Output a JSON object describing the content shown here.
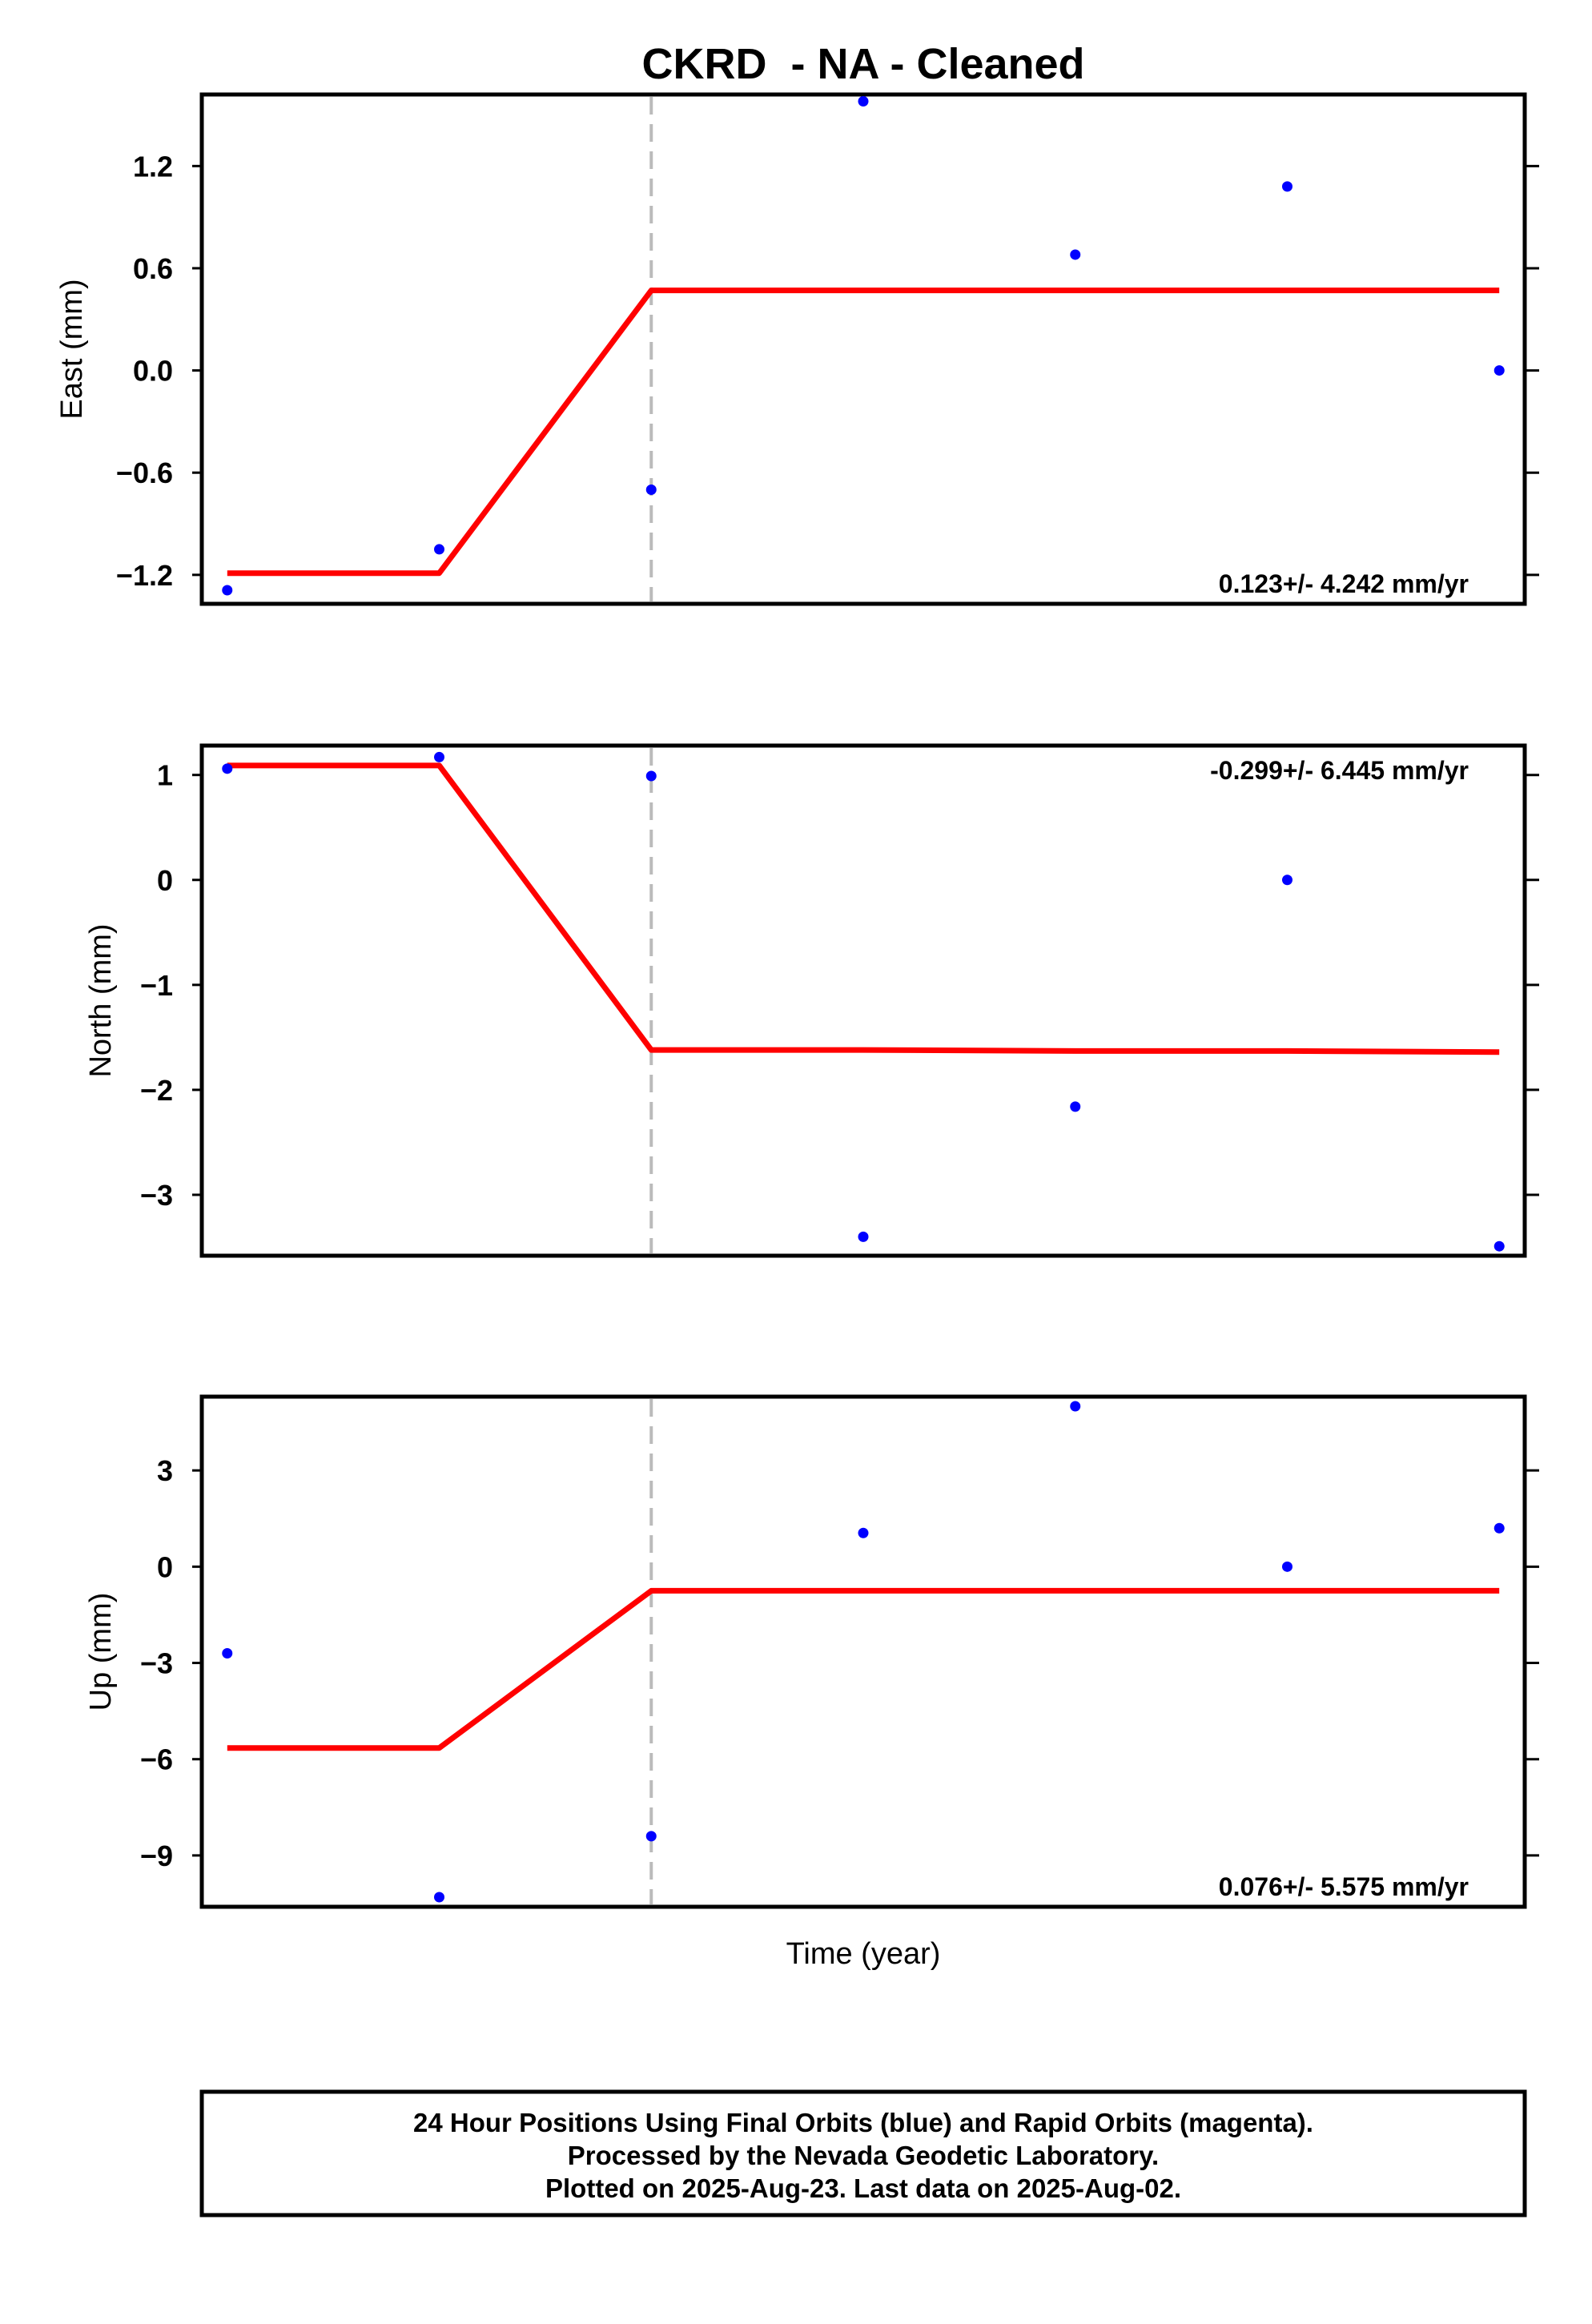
{
  "chart_data": {
    "type": "scatter",
    "title": "CKRD  - NA - Cleaned",
    "xlabel": "Time (year)",
    "x": [
      0,
      1,
      2,
      3,
      4,
      5,
      6
    ],
    "xlim": [
      -0.12,
      6.12
    ],
    "event_x": 2,
    "colors": {
      "points": "#0000ff",
      "fit": "#ff0000",
      "event": "#bbbbbb"
    },
    "panels": [
      {
        "ylabel": "East (mm)",
        "ylim": [
          -1.37,
          1.62
        ],
        "yticks": [
          1.2,
          0.6,
          0.0,
          -0.6,
          -1.2
        ],
        "yticklabels": [
          "1.2",
          "0.6",
          "0.0",
          "−0.6",
          "−1.2"
        ],
        "points": [
          -1.29,
          -1.05,
          -0.7,
          1.58,
          0.68,
          1.08,
          0.0
        ],
        "fit": [
          [
            0,
            -1.19
          ],
          [
            1,
            -1.19
          ],
          [
            2,
            0.47
          ],
          [
            3,
            0.47
          ],
          [
            4,
            0.47
          ],
          [
            5,
            0.47
          ],
          [
            6,
            0.47
          ]
        ],
        "rate_text": "0.123+/- 4.242 mm/yr",
        "rate_pos": "bottom-right"
      },
      {
        "ylabel": "North (mm)",
        "ylim": [
          -3.58,
          1.28
        ],
        "yticks": [
          1,
          0,
          -1,
          -2,
          -3
        ],
        "yticklabels": [
          "1",
          "0",
          "−1",
          "−2",
          "−3"
        ],
        "points": [
          1.06,
          1.17,
          0.99,
          -3.4,
          -2.16,
          0.0,
          -3.49
        ],
        "fit": [
          [
            0,
            1.09
          ],
          [
            1,
            1.09
          ],
          [
            2,
            -1.62
          ],
          [
            3,
            -1.62
          ],
          [
            4,
            -1.63
          ],
          [
            5,
            -1.63
          ],
          [
            6,
            -1.64
          ]
        ],
        "rate_text": "-0.299+/- 6.445 mm/yr",
        "rate_pos": "top-right"
      },
      {
        "ylabel": "Up (mm)",
        "ylim": [
          -10.6,
          5.3
        ],
        "yticks": [
          3,
          0,
          -3,
          -6,
          -9
        ],
        "yticklabels": [
          "3",
          "0",
          "−3",
          "−6",
          "−9"
        ],
        "points": [
          -2.7,
          -10.3,
          -8.4,
          1.05,
          5.0,
          0.0,
          1.2
        ],
        "fit": [
          [
            0,
            -5.65
          ],
          [
            1,
            -5.65
          ],
          [
            2,
            -0.75
          ],
          [
            3,
            -0.75
          ],
          [
            4,
            -0.75
          ],
          [
            5,
            -0.75
          ],
          [
            6,
            -0.75
          ]
        ],
        "rate_text": "0.076+/- 5.575 mm/yr",
        "rate_pos": "bottom-right"
      }
    ],
    "footer": [
      "24 Hour Positions Using Final Orbits (blue) and Rapid Orbits (magenta).",
      "Processed by the Nevada Geodetic Laboratory.",
      "Plotted on 2025-Aug-23. Last data on 2025-Aug-02."
    ]
  }
}
